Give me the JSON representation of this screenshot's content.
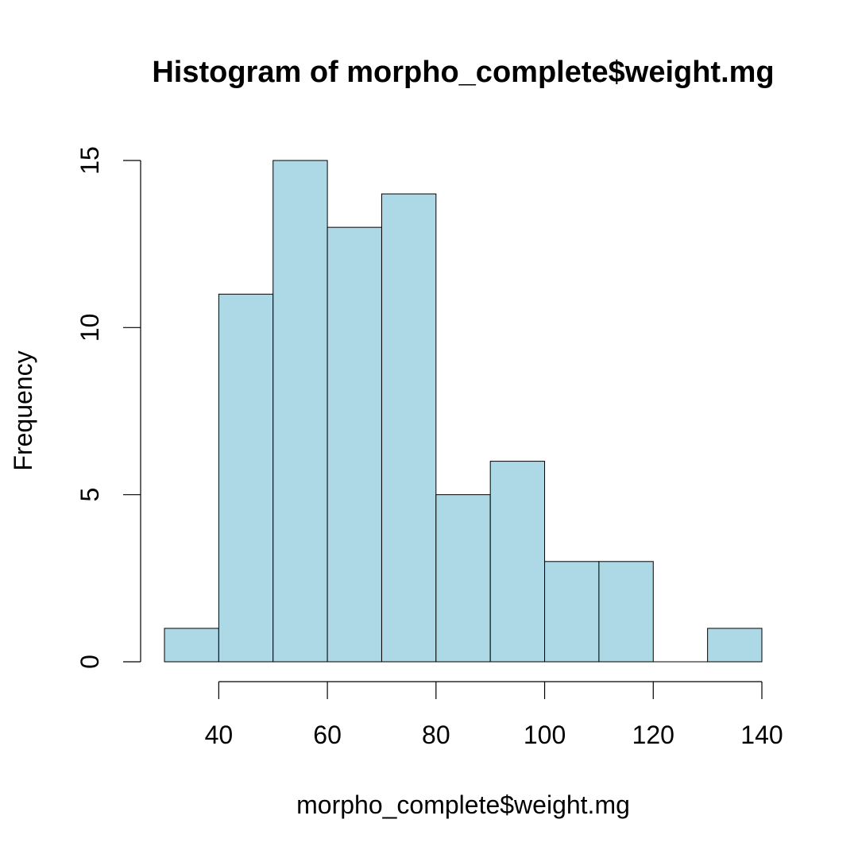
{
  "chart_data": {
    "type": "bar",
    "title": "Histogram of morpho_complete$weight.mg",
    "xlabel": "morpho_complete$weight.mg",
    "ylabel": "Frequency",
    "bins": [
      {
        "start": 30,
        "end": 40,
        "count": 1
      },
      {
        "start": 40,
        "end": 50,
        "count": 11
      },
      {
        "start": 50,
        "end": 60,
        "count": 15
      },
      {
        "start": 60,
        "end": 70,
        "count": 13
      },
      {
        "start": 70,
        "end": 80,
        "count": 14
      },
      {
        "start": 80,
        "end": 90,
        "count": 5
      },
      {
        "start": 90,
        "end": 100,
        "count": 6
      },
      {
        "start": 100,
        "end": 110,
        "count": 3
      },
      {
        "start": 110,
        "end": 120,
        "count": 3
      },
      {
        "start": 120,
        "end": 130,
        "count": 0
      },
      {
        "start": 130,
        "end": 140,
        "count": 1
      }
    ],
    "x_ticks": [
      40,
      60,
      80,
      100,
      120,
      140
    ],
    "y_ticks": [
      0,
      5,
      10,
      15
    ],
    "xlim": [
      30,
      140
    ],
    "ylim": [
      0,
      15
    ],
    "grid": false,
    "bar_color": "#add8e6",
    "border_color": "#000000"
  }
}
